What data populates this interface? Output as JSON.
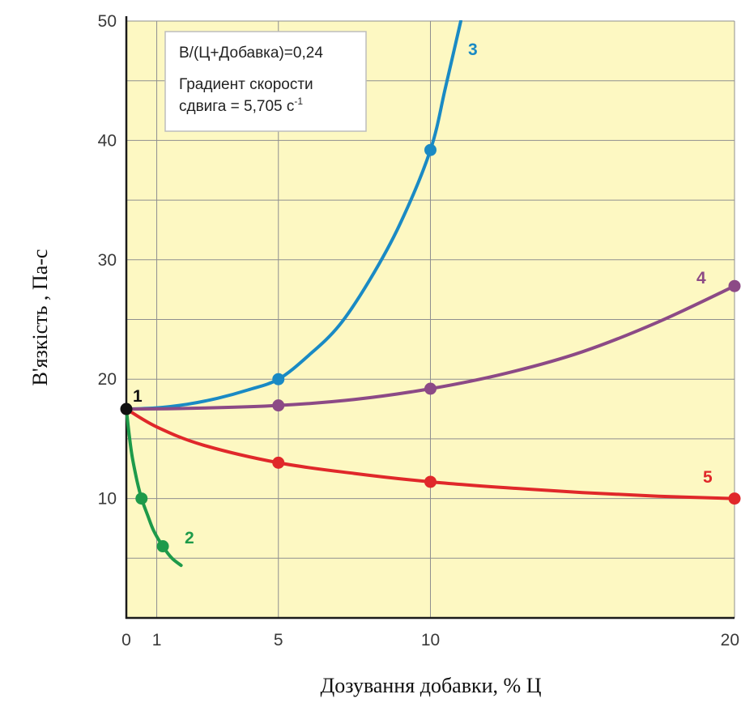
{
  "chart_data": {
    "type": "line",
    "title": "",
    "xlabel": "Дозування добавки, % Ц",
    "ylabel": "В'язкість , Па-с",
    "xlim": [
      0,
      20
    ],
    "ylim": [
      0,
      50
    ],
    "x_ticks": [
      "0",
      "1",
      "5",
      "10",
      "20"
    ],
    "x_tick_values": [
      0,
      1,
      5,
      10,
      20
    ],
    "y_ticks": [
      "10",
      "20",
      "30",
      "40",
      "50"
    ],
    "y_tick_values": [
      10,
      20,
      30,
      40,
      50
    ],
    "grid": true,
    "background_color": "#fdf8c2",
    "start_point": {
      "label": "1",
      "x": 0,
      "y": 17.5,
      "color": "#111111"
    },
    "series": [
      {
        "name": "2",
        "color": "#1e9a4a",
        "markers": [
          [
            0,
            17.5
          ],
          [
            0.5,
            10
          ],
          [
            1.2,
            6
          ]
        ],
        "curve": [
          [
            0,
            17.5
          ],
          [
            0.1,
            15.2
          ],
          [
            0.2,
            13.4
          ],
          [
            0.35,
            11.5
          ],
          [
            0.5,
            10
          ],
          [
            0.7,
            8.6
          ],
          [
            0.9,
            7.3
          ],
          [
            1.2,
            6
          ],
          [
            1.5,
            5
          ],
          [
            1.8,
            4.4
          ]
        ]
      },
      {
        "name": "3",
        "color": "#1a8ac4",
        "markers": [
          [
            0,
            17.5
          ],
          [
            5,
            20
          ],
          [
            10,
            39.2
          ]
        ],
        "curve": [
          [
            0,
            17.5
          ],
          [
            1,
            17.6
          ],
          [
            2,
            17.9
          ],
          [
            3,
            18.4
          ],
          [
            4,
            19.1
          ],
          [
            5,
            20
          ],
          [
            6,
            22
          ],
          [
            7,
            24.5
          ],
          [
            8,
            28.3
          ],
          [
            9,
            33
          ],
          [
            10,
            39.2
          ],
          [
            10.5,
            44.5
          ],
          [
            11,
            50
          ]
        ]
      },
      {
        "name": "4",
        "color": "#8c4a86",
        "markers": [
          [
            0,
            17.5
          ],
          [
            5,
            17.8
          ],
          [
            10,
            19.2
          ],
          [
            20,
            27.8
          ]
        ],
        "curve": [
          [
            0,
            17.5
          ],
          [
            2,
            17.55
          ],
          [
            5,
            17.8
          ],
          [
            7.5,
            18.3
          ],
          [
            10,
            19.2
          ],
          [
            12.5,
            20.5
          ],
          [
            15,
            22.3
          ],
          [
            17.5,
            24.8
          ],
          [
            20,
            27.8
          ]
        ]
      },
      {
        "name": "5",
        "color": "#e0282a",
        "markers": [
          [
            0,
            17.5
          ],
          [
            5,
            13
          ],
          [
            10,
            11.4
          ],
          [
            20,
            10
          ]
        ],
        "curve": [
          [
            0,
            17.5
          ],
          [
            1,
            16
          ],
          [
            2.5,
            14.5
          ],
          [
            5,
            13
          ],
          [
            7.5,
            12.1
          ],
          [
            10,
            11.4
          ],
          [
            12.5,
            10.9
          ],
          [
            15,
            10.5
          ],
          [
            17.5,
            10.2
          ],
          [
            20,
            10
          ]
        ]
      }
    ],
    "annotation": {
      "line1": "В/(Ц+Добавка)=0,24",
      "line2": "Градиент скорости",
      "line3": "сдвига = 5,705 с",
      "line3_sup": "-1"
    }
  }
}
